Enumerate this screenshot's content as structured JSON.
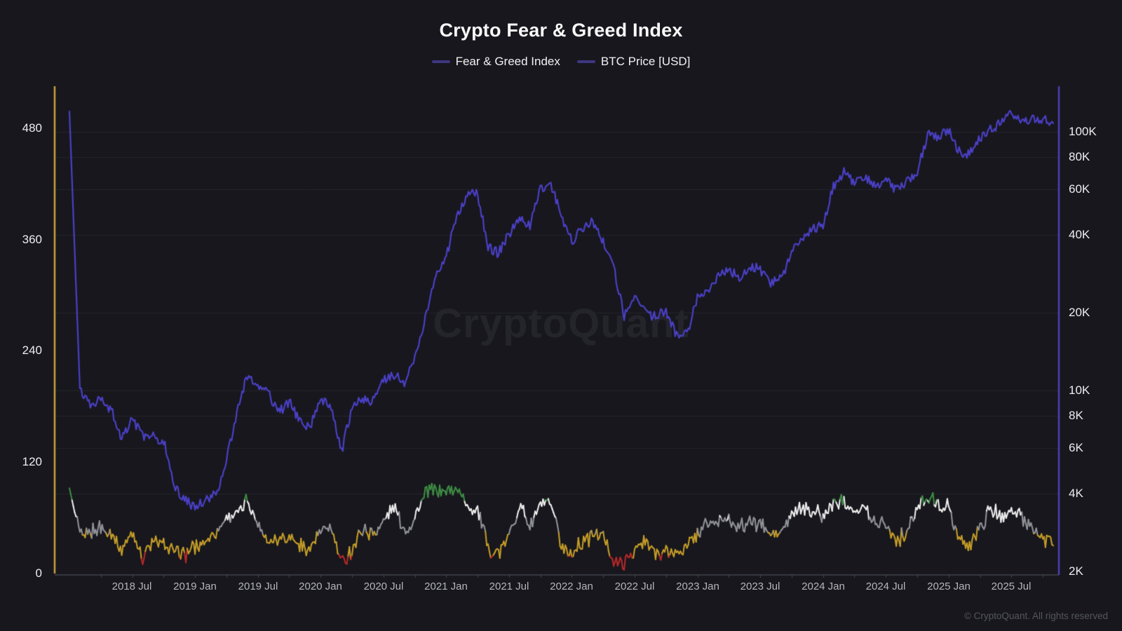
{
  "page": {
    "title": "Crypto Fear & Greed Index",
    "watermark": "CryptoQuant",
    "footer": "© CryptoQuant. All rights reserved",
    "background_color": "#17171d"
  },
  "legend": {
    "items": [
      {
        "label": "Fear & Greed Index",
        "swatch_color": "#3e3780"
      },
      {
        "label": "BTC Price [USD]",
        "swatch_color": "#3e3780"
      }
    ]
  },
  "chart_data": {
    "type": "line",
    "title": "Crypto Fear & Greed Index",
    "grid": "horizontal-faint",
    "grid_color": "#26262d",
    "legend_position": "top-center",
    "x_start_month": "2018-01",
    "x_interval": "monthly",
    "x_ticks": [
      "2018 Jul",
      "2019 Jan",
      "2019 Jul",
      "2020 Jan",
      "2020 Jul",
      "2021 Jan",
      "2021 Jul",
      "2022 Jan",
      "2022 Jul",
      "2023 Jan",
      "2023 Jul",
      "2024 Jan",
      "2024 Jul",
      "2025 Jan",
      "2025 Jul"
    ],
    "x_tick_month_indices": [
      6,
      12,
      18,
      24,
      30,
      36,
      42,
      48,
      54,
      60,
      66,
      72,
      78,
      84,
      90
    ],
    "left_axis": {
      "title": "Fear & Greed Index",
      "ticks": [
        "0",
        "120",
        "240",
        "360",
        "480"
      ],
      "tick_values": [
        0,
        120,
        240,
        360,
        480
      ],
      "range": [
        0,
        524
      ],
      "axis_line_color": "#c9a23f",
      "scale": "linear"
    },
    "right_axis": {
      "title": "BTC Price [USD]",
      "ticks": [
        "2K",
        "4K",
        "6K",
        "8K",
        "10K",
        "20K",
        "40K",
        "60K",
        "80K",
        "100K"
      ],
      "tick_values": [
        2000,
        4000,
        6000,
        8000,
        10000,
        20000,
        40000,
        60000,
        80000,
        100000
      ],
      "range": [
        2000,
        125000
      ],
      "axis_line_color": "#4c41b8",
      "scale": "log"
    },
    "series": [
      {
        "name": "Fear & Greed Index",
        "axis": "left",
        "note": "line colored by value band; first point renders as the vertical start spike",
        "band_thresholds": [
          20,
          44,
          60,
          78
        ],
        "band_colors": [
          "#bb2a2a",
          "#c9a028",
          "#94949c",
          "#f2f2f2",
          "#3f8e44"
        ],
        "band_names": [
          "extreme-fear",
          "fear",
          "neutral",
          "greed",
          "extreme-greed"
        ],
        "values": [
          92,
          40,
          45,
          50,
          45,
          25,
          45,
          18,
          35,
          32,
          22,
          20,
          28,
          35,
          45,
          60,
          65,
          78,
          55,
          35,
          40,
          40,
          30,
          28,
          45,
          50,
          12,
          25,
          48,
          42,
          55,
          75,
          45,
          60,
          86,
          92,
          88,
          92,
          75,
          68,
          28,
          22,
          40,
          74,
          50,
          75,
          72,
          30,
          20,
          35,
          40,
          40,
          14,
          9,
          25,
          34,
          22,
          24,
          23,
          27,
          45,
          55,
          55,
          60,
          50,
          54,
          54,
          40,
          45,
          63,
          70,
          70,
          60,
          75,
          80,
          70,
          70,
          55,
          55,
          35,
          45,
          70,
          84,
          75,
          70,
          38,
          30,
          50,
          70,
          62,
          70,
          58,
          50,
          38,
          30
        ]
      },
      {
        "name": "BTC Price [USD]",
        "axis": "right",
        "color": "#4b40c6",
        "note": "USD, log scale; first point renders as the vertical start spike",
        "values": [
          120000,
          10200,
          8800,
          9200,
          8400,
          6500,
          7800,
          6700,
          6600,
          6400,
          4300,
          3800,
          3500,
          3800,
          4000,
          5300,
          8300,
          11500,
          10200,
          9800,
          8200,
          9100,
          7600,
          7200,
          9300,
          8700,
          5800,
          8600,
          9400,
          9100,
          11000,
          11600,
          10700,
          13500,
          19000,
          28000,
          33000,
          47000,
          58000,
          58000,
          36000,
          34000,
          40000,
          47000,
          43000,
          61000,
          63000,
          47000,
          38000,
          42000,
          45000,
          38000,
          30000,
          19500,
          23000,
          20000,
          19300,
          20500,
          16500,
          16600,
          23000,
          23500,
          28000,
          29500,
          27000,
          30500,
          29200,
          26000,
          27000,
          34500,
          37500,
          42500,
          43000,
          62000,
          70000,
          64000,
          68000,
          61000,
          66000,
          59000,
          63500,
          70000,
          97000,
          95000,
          102000,
          84000,
          82500,
          94000,
          104000,
          107000,
          118000,
          109000,
          114000,
          112000,
          108000
        ]
      }
    ]
  }
}
